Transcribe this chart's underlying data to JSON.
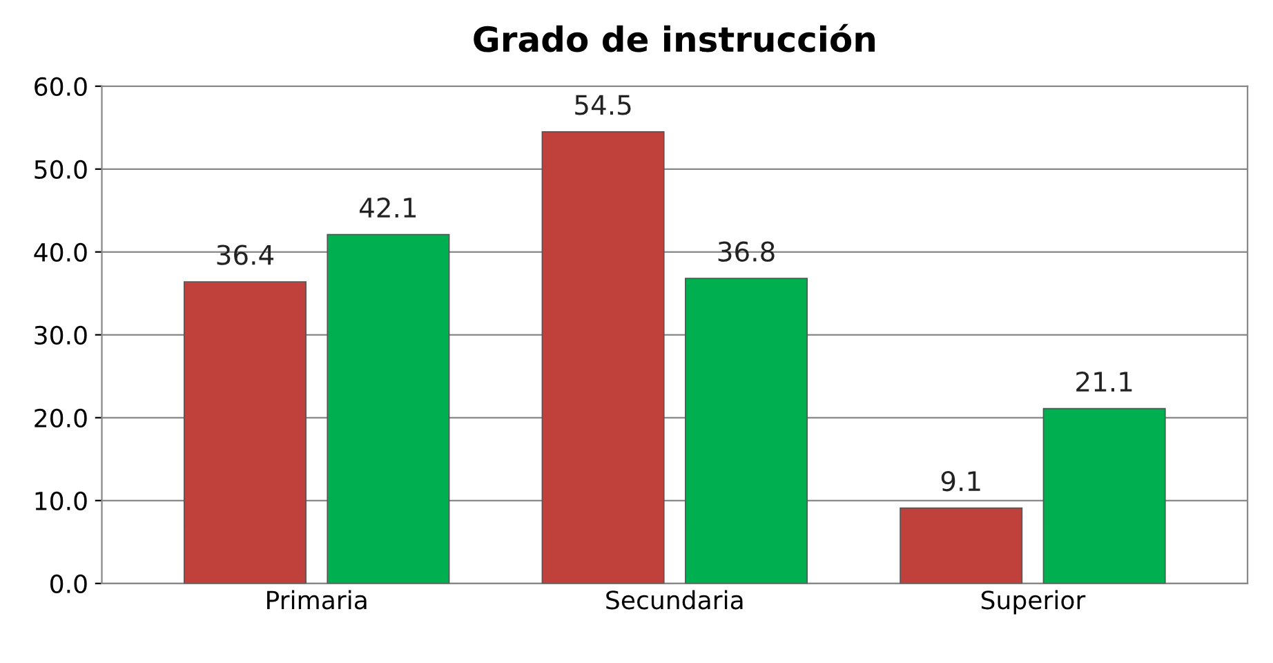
{
  "chart_data": {
    "type": "bar",
    "title": "Grado de instrucción",
    "categories": [
      "Primaria",
      "Secundaria",
      "Superior"
    ],
    "series": [
      {
        "color": "#c0403c",
        "values": [
          36.4,
          54.5,
          9.1
        ]
      },
      {
        "color": "#00b050",
        "values": [
          42.1,
          36.8,
          21.1
        ]
      }
    ],
    "ylim": [
      0,
      60
    ],
    "yticks": [
      {
        "value": 0,
        "label": "0.0"
      },
      {
        "value": 10,
        "label": "10.0"
      },
      {
        "value": 20,
        "label": "20.0"
      },
      {
        "value": 30,
        "label": "30.0"
      },
      {
        "value": 40,
        "label": "40.0"
      },
      {
        "value": 50,
        "label": "50.0"
      },
      {
        "value": 60,
        "label": "60.0"
      }
    ],
    "grid": "y",
    "data_labels": true,
    "legend": false
  }
}
